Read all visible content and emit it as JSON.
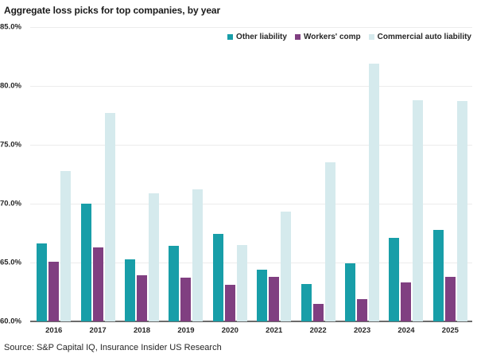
{
  "title": "Aggregate loss picks for top companies, by year",
  "source": "Source: S&P Capital IQ, Insurance Insider US Research",
  "colors": {
    "other_liability": "#189EA8",
    "workers_comp": "#803F81",
    "commercial_auto_liability": "#D5EAED",
    "gridline": "#ECECEC",
    "axis_line": "#6B6B6B",
    "text": "#262626"
  },
  "chart_data": {
    "type": "bar",
    "title": "Aggregate loss picks for top companies, by year",
    "categories": [
      "2016",
      "2017",
      "2018",
      "2019",
      "2020",
      "2021",
      "2022",
      "2023",
      "2024",
      "2025"
    ],
    "series": [
      {
        "name": "Other liability",
        "color": "#189EA8",
        "values": [
          66.6,
          70.0,
          65.3,
          66.4,
          67.4,
          64.4,
          63.2,
          64.9,
          67.1,
          67.8
        ]
      },
      {
        "name": "Workers' comp",
        "color": "#803F81",
        "values": [
          65.1,
          66.3,
          63.9,
          63.7,
          63.1,
          63.8,
          61.5,
          61.9,
          63.3,
          63.8
        ]
      },
      {
        "name": "Commercial auto liability",
        "color": "#D5EAED",
        "values": [
          72.8,
          77.7,
          70.9,
          71.2,
          66.5,
          69.3,
          73.5,
          81.9,
          78.8,
          78.7
        ]
      }
    ],
    "xlabel": "",
    "ylabel": "",
    "ylim": [
      60,
      85
    ],
    "yticks": [
      85,
      80,
      75,
      70,
      65,
      60
    ],
    "ytick_labels": [
      "85.0%",
      "80.0%",
      "75.0%",
      "70.0%",
      "65.0%",
      "60.0%"
    ],
    "grid": "horizontal",
    "legend_position": "top-right"
  }
}
